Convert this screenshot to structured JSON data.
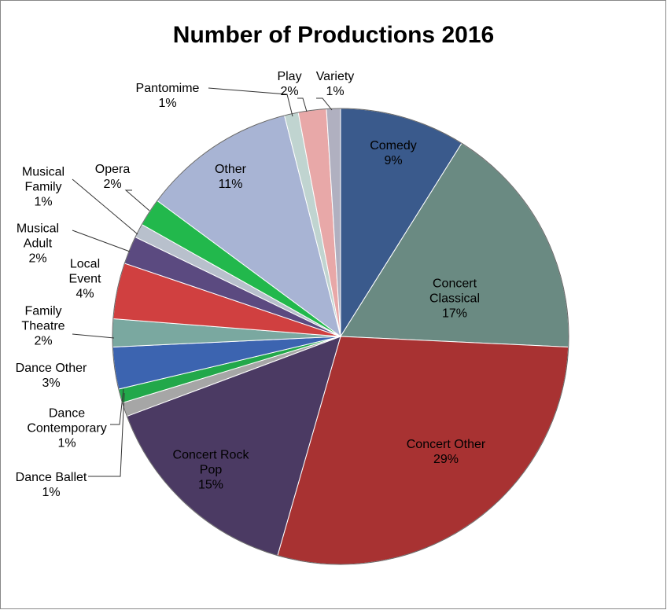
{
  "chart_data": {
    "type": "pie",
    "title": "Number of Productions 2016",
    "categories": [
      "Comedy",
      "Concert Classical",
      "Concert Other",
      "Concert Rock Pop",
      "Dance Ballet",
      "Dance Contemporary",
      "Dance Other",
      "Family Theatre",
      "Local Event",
      "Musical Adult",
      "Musical Family",
      "Opera",
      "Other",
      "Pantomime",
      "Play",
      "Variety"
    ],
    "values": [
      9,
      17,
      29,
      15,
      1,
      1,
      3,
      2,
      4,
      2,
      1,
      2,
      11,
      1,
      2,
      1
    ],
    "value_labels": [
      "9%",
      "17%",
      "29%",
      "15%",
      "1%",
      "1%",
      "3%",
      "2%",
      "4%",
      "2%",
      "1%",
      "2%",
      "11%",
      "1%",
      "2%",
      "1%"
    ],
    "colors": [
      "#3a5a8c",
      "#6a8a82",
      "#a83232",
      "#4b3a63",
      "#a6a6a6",
      "#22a84a",
      "#3c64b0",
      "#7aa8a0",
      "#d04040",
      "#5b4a80",
      "#b8c0cc",
      "#22b84c",
      "#a8b4d4",
      "#c0d4d0",
      "#e8a8a8",
      "#b0b0c0"
    ]
  }
}
